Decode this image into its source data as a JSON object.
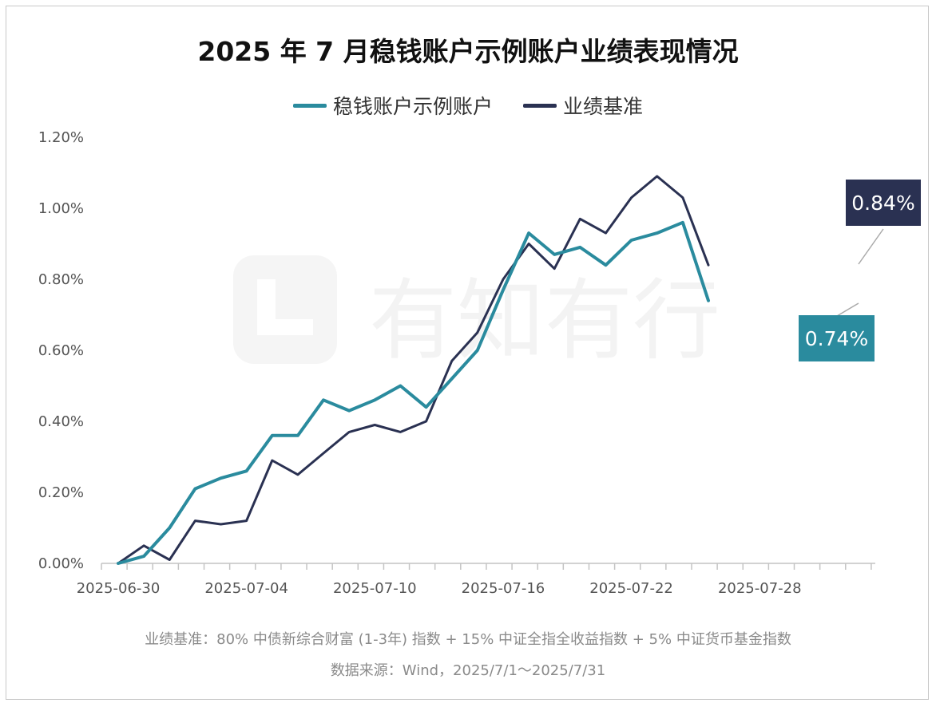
{
  "chart_data": {
    "type": "line",
    "title": "2025 年 7 月稳钱账户示例账户业绩表现情况",
    "x_tick_labels": [
      "2025-06-30",
      "2025-07-04",
      "2025-07-10",
      "2025-07-16",
      "2025-07-22",
      "2025-07-28"
    ],
    "y_tick_labels": [
      "0.00%",
      "0.20%",
      "0.40%",
      "0.60%",
      "0.80%",
      "1.00%",
      "1.20%"
    ],
    "ylim": [
      0,
      1.2
    ],
    "y_unit": "%",
    "grid": false,
    "legend_position": "top-center",
    "series": [
      {
        "name": "稳钱账户示例账户",
        "color": "#2a8b9e",
        "end_label": "0.74%",
        "values": [
          0.0,
          0.02,
          0.1,
          0.21,
          0.24,
          0.26,
          0.36,
          0.36,
          0.46,
          0.43,
          0.46,
          0.5,
          0.44,
          0.52,
          0.6,
          0.77,
          0.93,
          0.87,
          0.89,
          0.84,
          0.91,
          0.93,
          0.96,
          0.74
        ]
      },
      {
        "name": "业绩基准",
        "color": "#2a3152",
        "end_label": "0.84%",
        "values": [
          0.0,
          0.05,
          0.01,
          0.12,
          0.11,
          0.12,
          0.29,
          0.25,
          0.31,
          0.37,
          0.39,
          0.37,
          0.4,
          0.57,
          0.65,
          0.8,
          0.9,
          0.83,
          0.97,
          0.93,
          1.03,
          1.09,
          1.03,
          0.84
        ]
      }
    ]
  },
  "watermark": {
    "text": "有知有行"
  },
  "footnotes": {
    "benchmark": "业绩基准：80% 中债新综合财富 (1-3年) 指数 + 15% 中证全指全收益指数 + 5% 中证货币基金指数",
    "source": "数据来源：Wind，2025/7/1～2025/7/31"
  }
}
